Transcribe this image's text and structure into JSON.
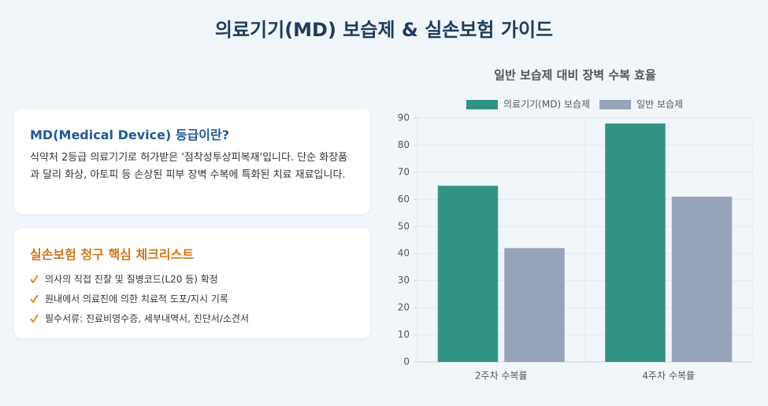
{
  "header": {
    "title": "의료기기(MD) 보습제 & 실손보험 가이드"
  },
  "cards": [
    {
      "title": "MD(Medical Device) 등급이란?",
      "text": "식약처 2등급 의료기기로 허가받은 '점착성투상피복재'입니다. 단순 화장품과 달리 화상, 아토피 등 손상된 피부 장벽 수복에 특화된 치료 재료입니다."
    },
    {
      "title": "실손보험 청구 핵심 체크리스트",
      "items": [
        "의사의 직접 진찰 및 질병코드(L20 등) 확정",
        "원내에서 의료진에 의한 치료적 도포/지시 기록",
        "필수서류: 진료비영수증, 세부내역서, 진단서/소견서"
      ]
    }
  ],
  "chart_data": {
    "type": "bar",
    "title": "일반 보습제 대비 장벽 수복 효율",
    "categories": [
      "2주차 수복률",
      "4주차 수복률"
    ],
    "series": [
      {
        "name": "의료기기(MD) 보습제",
        "color": "#329384",
        "values": [
          65,
          88
        ]
      },
      {
        "name": "일반 보습제",
        "color": "#97a3b9",
        "values": [
          42,
          61
        ]
      }
    ],
    "ylim": [
      0,
      90
    ],
    "yticks": [
      0,
      10,
      20,
      30,
      40,
      50,
      60,
      70,
      80,
      90
    ],
    "grid": true,
    "legend": "top"
  }
}
